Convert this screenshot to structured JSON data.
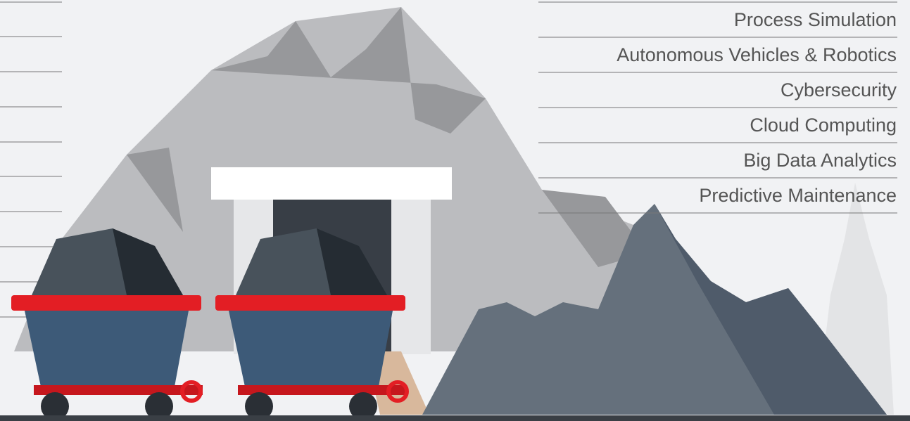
{
  "list": {
    "items": [
      "Process Simulation",
      "Autonomous Vehicles & Robotics",
      "Cybersecurity",
      "Cloud Computing",
      "Big Data Analytics",
      "Predictive Maintenance"
    ]
  }
}
